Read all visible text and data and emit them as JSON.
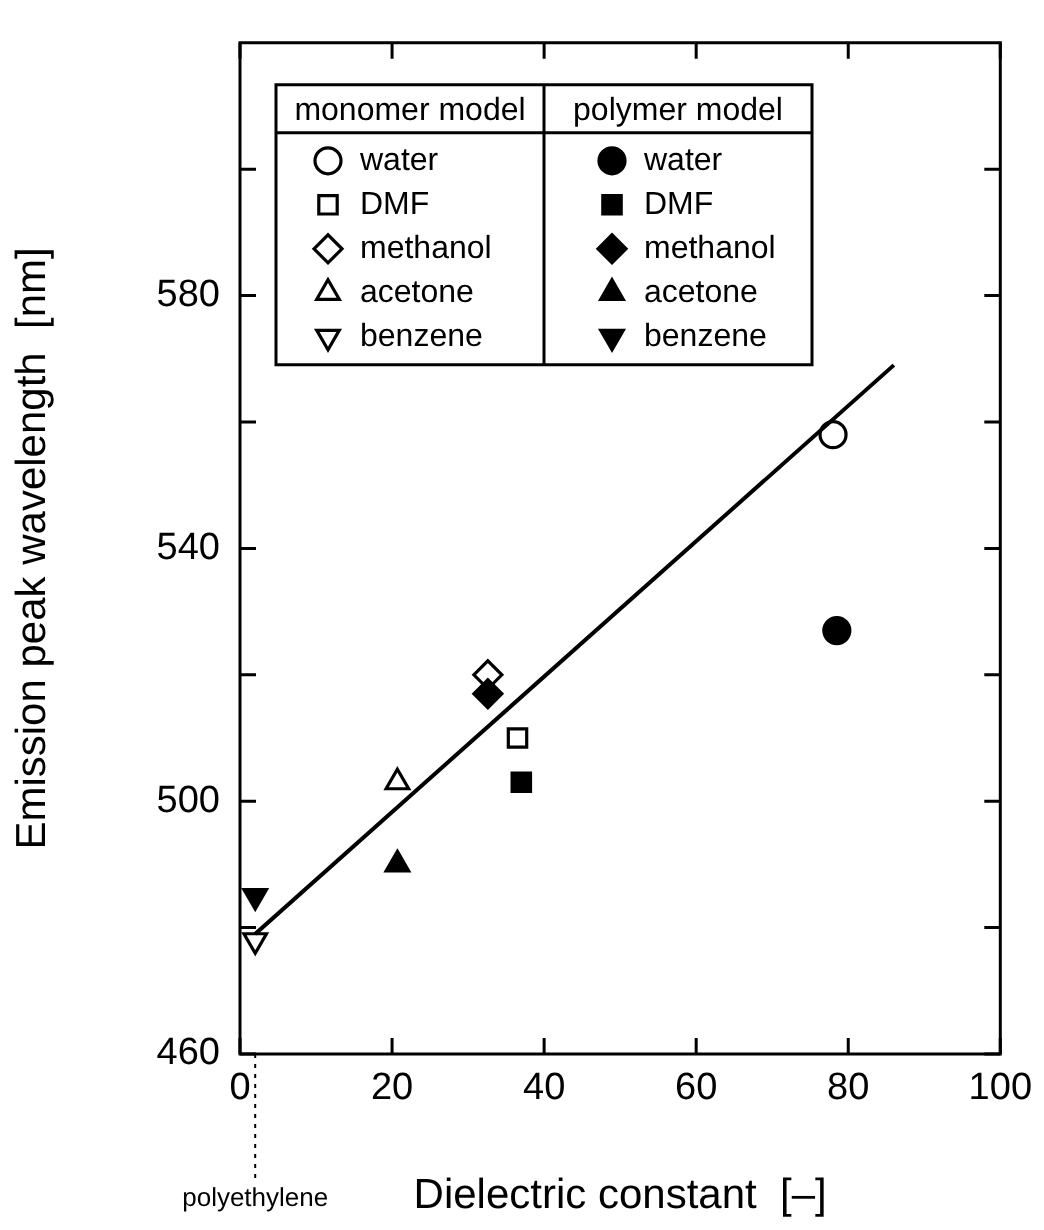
{
  "chart_data": {
    "type": "scatter",
    "xlabel": "Dielectric constant  [–]",
    "ylabel": "Emission peak wavelength  [nm]",
    "xlim": [
      0,
      100
    ],
    "xticks": [
      0,
      20,
      40,
      60,
      80,
      100
    ],
    "ylim": [
      460,
      620
    ],
    "yticks": [
      460,
      {
        "value": 480,
        "label": null
      },
      500,
      {
        "value": 520,
        "label": null
      },
      540,
      {
        "value": 560,
        "label": null
      },
      580,
      {
        "value": 600,
        "label": null
      }
    ],
    "legend": "top left",
    "grid": false,
    "annotations": [
      "monomer model",
      "polymer model"
    ],
    "ref_lines": [
      {
        "axis": "x",
        "value": 2,
        "label": "polyethylene",
        "line_style": "dotted"
      }
    ],
    "series": [
      {
        "name": "water",
        "color": "#000000",
        "marker": "circle",
        "x": [
          78
        ],
        "values": [
          558
        ]
      },
      {
        "name": "DMF",
        "color": "#000000",
        "marker": "square",
        "x": [
          36.5
        ],
        "values": [
          510
        ]
      },
      {
        "name": "methanol",
        "color": "#000000",
        "marker": "diamond",
        "x": [
          32.6
        ],
        "values": [
          520
        ]
      },
      {
        "name": "acetone",
        "color": "#000000",
        "marker": "triangle",
        "x": [
          20.7
        ],
        "values": [
          503
        ]
      },
      {
        "name": "benzene",
        "color": "#000000",
        "marker": "triangle",
        "x": [
          2
        ],
        "values": [
          478
        ]
      },
      {
        "name": "water",
        "color": "#000000",
        "marker": "circle",
        "x": [
          78.5
        ],
        "values": [
          527
        ]
      },
      {
        "name": "DMF",
        "color": "#000000",
        "marker": "square",
        "x": [
          37
        ],
        "values": [
          503
        ]
      },
      {
        "name": "methanol",
        "color": "#000000",
        "marker": "diamond",
        "x": [
          32.6
        ],
        "values": [
          517
        ]
      },
      {
        "name": "acetone",
        "color": "#000000",
        "marker": "triangle",
        "x": [
          20.7
        ],
        "values": [
          490
        ]
      },
      {
        "name": "benzene",
        "color": "#000000",
        "marker": "triangle",
        "x": [
          2
        ],
        "values": [
          485
        ]
      },
      {
        "type": "line",
        "color": "#000000",
        "marker": "none",
        "x": [
          2,
          86
        ],
        "values": [
          479,
          569
        ]
      }
    ]
  }
}
